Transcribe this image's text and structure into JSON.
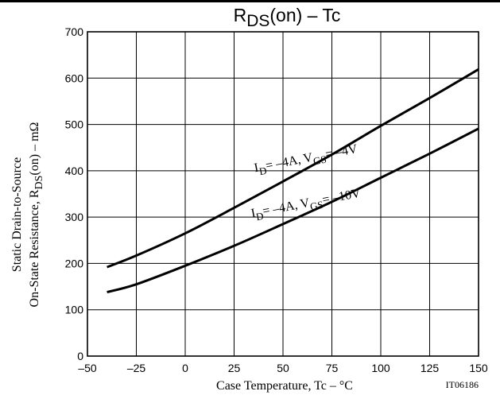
{
  "chart_data": {
    "type": "line",
    "title": "RDS(on) – Tc",
    "title_parts": {
      "main": "R",
      "sub": "DS",
      "rest": "(on)  –  Tc"
    },
    "xlabel": "Case Temperature, Tc  –  °C",
    "ylabel_line1": "Static Drain-to-Source",
    "ylabel_line2": {
      "pre": "On-State Resistance, R",
      "sub": "DS",
      "post": "(on)  –  mΩ"
    },
    "xlim": [
      -50,
      150
    ],
    "ylim": [
      0,
      700
    ],
    "x_ticks": [
      "–50",
      "–25",
      "0",
      "25",
      "50",
      "75",
      "100",
      "125",
      "150"
    ],
    "y_ticks": [
      "0",
      "100",
      "200",
      "300",
      "400",
      "500",
      "600",
      "700"
    ],
    "grid": true,
    "code": "IT06186",
    "series": [
      {
        "label": {
          "a": "I",
          "a_sub": "D",
          "b": "= –4A, V",
          "b_sub": "GS",
          "c": "= –4V"
        },
        "x": [
          -40,
          -25,
          0,
          25,
          50,
          75,
          100,
          125,
          150
        ],
        "y": [
          192,
          217,
          265,
          320,
          377,
          435,
          497,
          557,
          619
        ]
      },
      {
        "label": {
          "a": "I",
          "a_sub": "D",
          "b": "= –4A, V",
          "b_sub": "GS",
          "c": "= –10V"
        },
        "x": [
          -40,
          -25,
          0,
          25,
          50,
          75,
          100,
          125,
          150
        ],
        "y": [
          138,
          155,
          195,
          238,
          285,
          333,
          385,
          437,
          491
        ]
      }
    ]
  }
}
